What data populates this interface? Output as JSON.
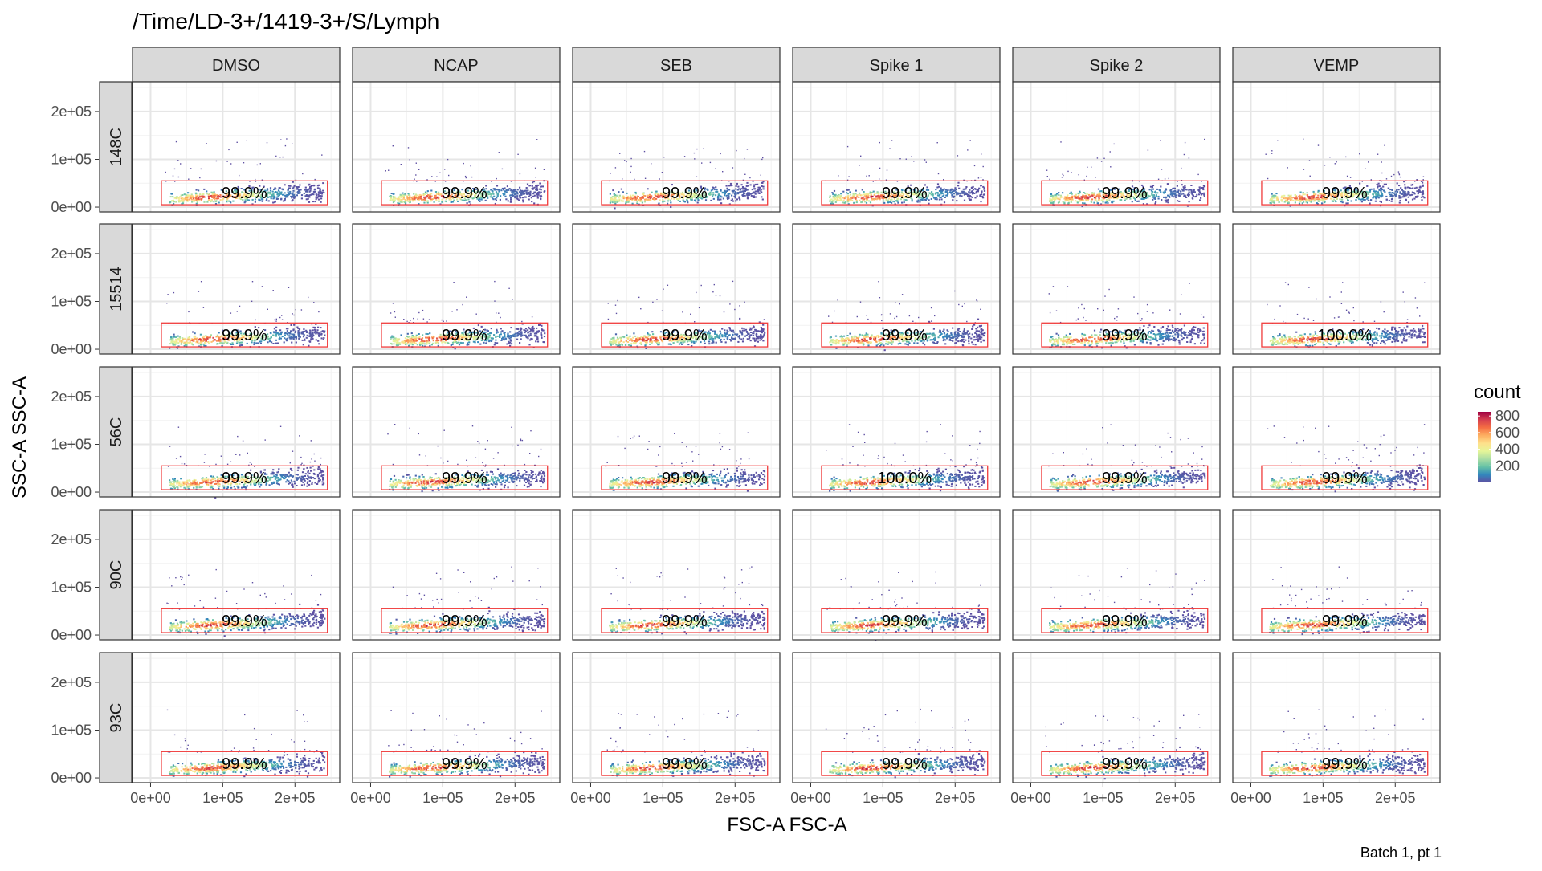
{
  "chart_data": {
    "type": "scatter",
    "subtype": "faceted 2D density (hexbin) with rectangle gates",
    "title": "/Time/LD-3+/1419-3+/S/Lymph",
    "xlabel": "FSC-A FSC-A",
    "ylabel": "SSC-A SSC-A",
    "caption": "Batch 1, pt 1",
    "column_strips": [
      "DMSO",
      "NCAP",
      "SEB",
      "Spike 1",
      "Spike 2",
      "VEMP"
    ],
    "row_strips": [
      "148C",
      "15514",
      "56C",
      "90C",
      "93C"
    ],
    "x_ticks": [
      {
        "value": 0,
        "label": "0e+00"
      },
      {
        "value": 100000,
        "label": "1e+05"
      },
      {
        "value": 200000,
        "label": "2e+05"
      }
    ],
    "y_ticks": [
      {
        "value": 0,
        "label": "0e+00"
      },
      {
        "value": 100000,
        "label": "1e+05"
      },
      {
        "value": 200000,
        "label": "2e+05"
      }
    ],
    "xlim": [
      -25000,
      262000
    ],
    "ylim": [
      -10000,
      262000
    ],
    "grid": true,
    "gate": {
      "x": [
        15000,
        245000
      ],
      "y": [
        5000,
        55000
      ],
      "color": "#f03b3b"
    },
    "gate_percentages": [
      [
        "99.9%",
        "99.9%",
        "99.9%",
        "99.9%",
        "99.9%",
        "99.9%"
      ],
      [
        "99.9%",
        "99.9%",
        "99.9%",
        "99.9%",
        "99.9%",
        "100.0%"
      ],
      [
        "99.9%",
        "99.9%",
        "99.9%",
        "100.0%",
        "99.9%",
        "99.9%"
      ],
      [
        "99.9%",
        "99.9%",
        "99.9%",
        "99.9%",
        "99.9%",
        "99.9%"
      ],
      [
        "99.9%",
        "99.9%",
        "99.8%",
        "99.9%",
        "99.9%",
        "99.9%"
      ]
    ],
    "legend": {
      "title": "count",
      "position": "right",
      "breaks": [
        200,
        400,
        600,
        800
      ],
      "labels": [
        "200",
        "400",
        "600",
        "800"
      ],
      "range": [
        1,
        850
      ],
      "palette": [
        "#5e4fa2",
        "#3288bd",
        "#66c2a5",
        "#abdda4",
        "#e6f598",
        "#fee08b",
        "#fdae61",
        "#f46d43",
        "#d53e4f",
        "#9e0142"
      ]
    }
  }
}
